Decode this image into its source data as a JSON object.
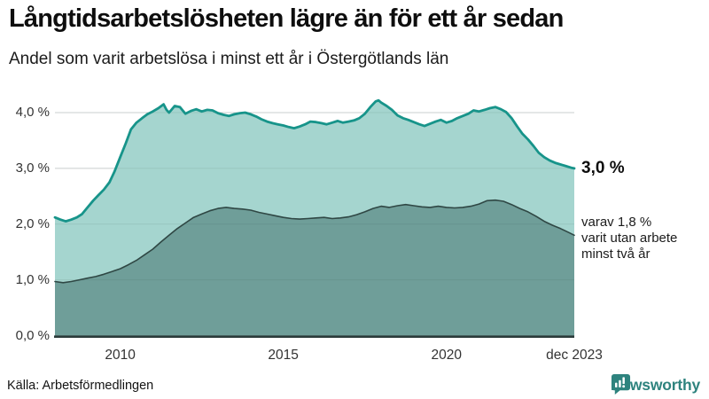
{
  "chart_data": {
    "type": "area",
    "title": "Långtidsarbetslösheten lägre än för ett år sedan",
    "subtitle": "Andel som varit arbetslösa i minst ett år i Östergötlands län",
    "grid": "horizontal",
    "legend_position": "none",
    "x_range": [
      2008.0,
      2023.92
    ],
    "ylim": [
      0,
      4.4
    ],
    "y_ticks": [
      {
        "value": 0,
        "label": "0,0 %"
      },
      {
        "value": 1,
        "label": "1,0 %"
      },
      {
        "value": 2,
        "label": "2,0 %"
      },
      {
        "value": 3,
        "label": "3,0 %"
      },
      {
        "value": 4,
        "label": "4,0 %"
      }
    ],
    "x_ticks": [
      {
        "value": 2010,
        "label": "2010"
      },
      {
        "value": 2015,
        "label": "2015"
      },
      {
        "value": 2020,
        "label": "2020"
      },
      {
        "value": 2023.92,
        "label": "dec 2023"
      }
    ],
    "series": [
      {
        "name": "Arbetslösa minst ett år",
        "end_value_pct": 3.0,
        "color": "#17948a",
        "fill": "#a5d5cf",
        "points": [
          [
            2008.0,
            2.12
          ],
          [
            2008.17,
            2.08
          ],
          [
            2008.33,
            2.05
          ],
          [
            2008.5,
            2.08
          ],
          [
            2008.67,
            2.12
          ],
          [
            2008.83,
            2.18
          ],
          [
            2009.0,
            2.3
          ],
          [
            2009.17,
            2.42
          ],
          [
            2009.33,
            2.52
          ],
          [
            2009.5,
            2.62
          ],
          [
            2009.67,
            2.75
          ],
          [
            2009.83,
            2.95
          ],
          [
            2010.0,
            3.2
          ],
          [
            2010.17,
            3.45
          ],
          [
            2010.33,
            3.7
          ],
          [
            2010.5,
            3.82
          ],
          [
            2010.67,
            3.9
          ],
          [
            2010.83,
            3.97
          ],
          [
            2011.0,
            4.02
          ],
          [
            2011.17,
            4.08
          ],
          [
            2011.33,
            4.15
          ],
          [
            2011.42,
            4.05
          ],
          [
            2011.5,
            4.0
          ],
          [
            2011.67,
            4.12
          ],
          [
            2011.83,
            4.1
          ],
          [
            2012.0,
            3.98
          ],
          [
            2012.17,
            4.03
          ],
          [
            2012.33,
            4.06
          ],
          [
            2012.5,
            4.02
          ],
          [
            2012.67,
            4.05
          ],
          [
            2012.83,
            4.04
          ],
          [
            2013.0,
            3.99
          ],
          [
            2013.17,
            3.96
          ],
          [
            2013.33,
            3.94
          ],
          [
            2013.5,
            3.97
          ],
          [
            2013.67,
            3.99
          ],
          [
            2013.83,
            4.0
          ],
          [
            2014.0,
            3.97
          ],
          [
            2014.17,
            3.93
          ],
          [
            2014.33,
            3.88
          ],
          [
            2014.5,
            3.84
          ],
          [
            2014.67,
            3.81
          ],
          [
            2014.83,
            3.79
          ],
          [
            2015.0,
            3.77
          ],
          [
            2015.17,
            3.74
          ],
          [
            2015.33,
            3.72
          ],
          [
            2015.5,
            3.75
          ],
          [
            2015.67,
            3.79
          ],
          [
            2015.83,
            3.84
          ],
          [
            2016.0,
            3.83
          ],
          [
            2016.17,
            3.81
          ],
          [
            2016.33,
            3.79
          ],
          [
            2016.5,
            3.82
          ],
          [
            2016.67,
            3.85
          ],
          [
            2016.83,
            3.82
          ],
          [
            2017.0,
            3.84
          ],
          [
            2017.17,
            3.86
          ],
          [
            2017.33,
            3.9
          ],
          [
            2017.5,
            3.98
          ],
          [
            2017.67,
            4.1
          ],
          [
            2017.83,
            4.2
          ],
          [
            2017.92,
            4.22
          ],
          [
            2018.0,
            4.18
          ],
          [
            2018.17,
            4.12
          ],
          [
            2018.33,
            4.05
          ],
          [
            2018.5,
            3.95
          ],
          [
            2018.67,
            3.9
          ],
          [
            2018.83,
            3.87
          ],
          [
            2019.0,
            3.83
          ],
          [
            2019.17,
            3.79
          ],
          [
            2019.33,
            3.76
          ],
          [
            2019.5,
            3.8
          ],
          [
            2019.67,
            3.84
          ],
          [
            2019.83,
            3.87
          ],
          [
            2020.0,
            3.82
          ],
          [
            2020.17,
            3.85
          ],
          [
            2020.33,
            3.9
          ],
          [
            2020.5,
            3.94
          ],
          [
            2020.67,
            3.98
          ],
          [
            2020.83,
            4.04
          ],
          [
            2021.0,
            4.02
          ],
          [
            2021.17,
            4.05
          ],
          [
            2021.33,
            4.08
          ],
          [
            2021.5,
            4.1
          ],
          [
            2021.67,
            4.06
          ],
          [
            2021.83,
            4.01
          ],
          [
            2022.0,
            3.9
          ],
          [
            2022.17,
            3.75
          ],
          [
            2022.33,
            3.62
          ],
          [
            2022.5,
            3.52
          ],
          [
            2022.67,
            3.4
          ],
          [
            2022.83,
            3.28
          ],
          [
            2023.0,
            3.2
          ],
          [
            2023.17,
            3.14
          ],
          [
            2023.33,
            3.1
          ],
          [
            2023.5,
            3.07
          ],
          [
            2023.67,
            3.04
          ],
          [
            2023.83,
            3.01
          ],
          [
            2023.92,
            3.0
          ]
        ]
      },
      {
        "name": "Utan arbete minst två år",
        "end_value_pct": 1.8,
        "color": "#2f4744",
        "fill": "#6f9e99",
        "points": [
          [
            2008.0,
            0.97
          ],
          [
            2008.25,
            0.95
          ],
          [
            2008.5,
            0.97
          ],
          [
            2008.75,
            1.0
          ],
          [
            2009.0,
            1.03
          ],
          [
            2009.25,
            1.06
          ],
          [
            2009.5,
            1.1
          ],
          [
            2009.75,
            1.15
          ],
          [
            2010.0,
            1.2
          ],
          [
            2010.25,
            1.27
          ],
          [
            2010.5,
            1.35
          ],
          [
            2010.75,
            1.45
          ],
          [
            2011.0,
            1.55
          ],
          [
            2011.25,
            1.68
          ],
          [
            2011.5,
            1.8
          ],
          [
            2011.75,
            1.92
          ],
          [
            2012.0,
            2.02
          ],
          [
            2012.25,
            2.12
          ],
          [
            2012.5,
            2.18
          ],
          [
            2012.75,
            2.24
          ],
          [
            2013.0,
            2.28
          ],
          [
            2013.25,
            2.3
          ],
          [
            2013.5,
            2.28
          ],
          [
            2013.75,
            2.27
          ],
          [
            2014.0,
            2.25
          ],
          [
            2014.25,
            2.21
          ],
          [
            2014.5,
            2.18
          ],
          [
            2014.75,
            2.15
          ],
          [
            2015.0,
            2.12
          ],
          [
            2015.25,
            2.1
          ],
          [
            2015.5,
            2.09
          ],
          [
            2015.75,
            2.1
          ],
          [
            2016.0,
            2.11
          ],
          [
            2016.25,
            2.12
          ],
          [
            2016.5,
            2.1
          ],
          [
            2016.75,
            2.11
          ],
          [
            2017.0,
            2.13
          ],
          [
            2017.25,
            2.17
          ],
          [
            2017.5,
            2.22
          ],
          [
            2017.75,
            2.28
          ],
          [
            2018.0,
            2.32
          ],
          [
            2018.25,
            2.3
          ],
          [
            2018.5,
            2.33
          ],
          [
            2018.75,
            2.35
          ],
          [
            2019.0,
            2.33
          ],
          [
            2019.25,
            2.31
          ],
          [
            2019.5,
            2.3
          ],
          [
            2019.75,
            2.32
          ],
          [
            2020.0,
            2.3
          ],
          [
            2020.25,
            2.29
          ],
          [
            2020.5,
            2.3
          ],
          [
            2020.75,
            2.32
          ],
          [
            2021.0,
            2.36
          ],
          [
            2021.25,
            2.42
          ],
          [
            2021.5,
            2.43
          ],
          [
            2021.75,
            2.41
          ],
          [
            2022.0,
            2.35
          ],
          [
            2022.25,
            2.28
          ],
          [
            2022.5,
            2.22
          ],
          [
            2022.75,
            2.14
          ],
          [
            2023.0,
            2.05
          ],
          [
            2023.25,
            1.98
          ],
          [
            2023.5,
            1.92
          ],
          [
            2023.75,
            1.85
          ],
          [
            2023.92,
            1.8
          ]
        ]
      }
    ],
    "annotations": {
      "end_value": "3,0 %",
      "sub_line1": "varav 1,8 %",
      "sub_line2": "varit utan arbete",
      "sub_line3": "minst två år"
    }
  },
  "footer": {
    "source": "Källa: Arbetsförmedlingen",
    "brand": "Newsworthy"
  },
  "colors": {
    "accent": "#2e837e",
    "axis_text": "#333333",
    "gridline": "#dcdfe0",
    "grid_overlay": "rgba(40,64,62,0.10)",
    "baseline": "#2c3b3a",
    "background": "#ffffff"
  }
}
